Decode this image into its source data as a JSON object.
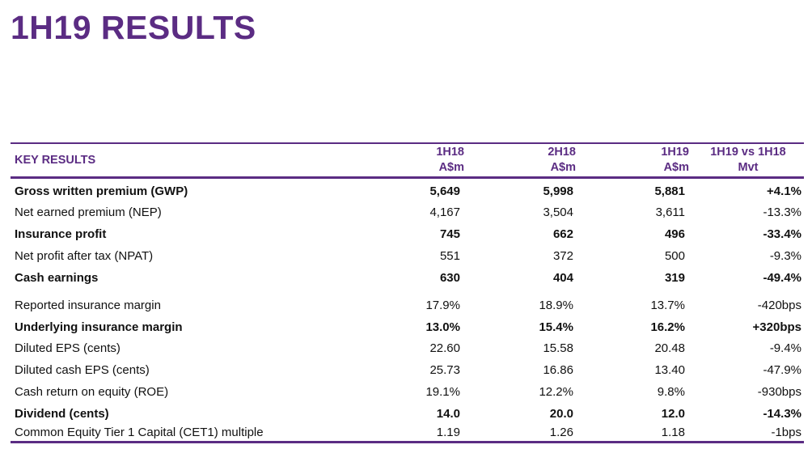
{
  "title": "1H19 RESULTS",
  "table": {
    "header": {
      "key_label": "KEY RESULTS",
      "col_1h18": [
        "1H18",
        "A$m"
      ],
      "col_2h18": [
        "2H18",
        "A$m"
      ],
      "col_1h19": [
        "1H19",
        "A$m"
      ],
      "col_mvt": [
        "1H19 vs 1H18",
        "Mvt"
      ]
    },
    "rows": [
      {
        "label": "Gross written premium (GWP)",
        "h1_18": "5,649",
        "h2_18": "5,998",
        "h1_19": "5,881",
        "mvt": "+4.1%",
        "bold": true
      },
      {
        "label": "Net earned premium (NEP)",
        "h1_18": "4,167",
        "h2_18": "3,504",
        "h1_19": "3,611",
        "mvt": "-13.3%",
        "bold": false
      },
      {
        "label": "Insurance profit",
        "h1_18": "745",
        "h2_18": "662",
        "h1_19": "496",
        "mvt": "-33.4%",
        "bold": true
      },
      {
        "label": "Net profit after tax (NPAT)",
        "h1_18": "551",
        "h2_18": "372",
        "h1_19": "500",
        "mvt": "-9.3%",
        "bold": false
      },
      {
        "label": "Cash earnings",
        "h1_18": "630",
        "h2_18": "404",
        "h1_19": "319",
        "mvt": "-49.4%",
        "bold": true
      },
      {
        "label": "Reported insurance margin",
        "h1_18": "17.9%",
        "h2_18": "18.9%",
        "h1_19": "13.7%",
        "mvt": "-420bps",
        "bold": false
      },
      {
        "label": "Underlying insurance margin",
        "h1_18": "13.0%",
        "h2_18": "15.4%",
        "h1_19": "16.2%",
        "mvt": "+320bps",
        "bold": true
      },
      {
        "label": "Diluted EPS (cents)",
        "h1_18": "22.60",
        "h2_18": "15.58",
        "h1_19": "20.48",
        "mvt": "-9.4%",
        "bold": false
      },
      {
        "label": "Diluted cash EPS (cents)",
        "h1_18": "25.73",
        "h2_18": "16.86",
        "h1_19": "13.40",
        "mvt": "-47.9%",
        "bold": false
      },
      {
        "label": "Cash return on equity (ROE)",
        "h1_18": "19.1%",
        "h2_18": "12.2%",
        "h1_19": "9.8%",
        "mvt": "-930bps",
        "bold": false
      },
      {
        "label": "Dividend (cents)",
        "h1_18": "14.0",
        "h2_18": "20.0",
        "h1_19": "12.0",
        "mvt": "-14.3%",
        "bold": true
      },
      {
        "label": "Common Equity Tier 1 Capital (CET1) multiple",
        "h1_18": "1.19",
        "h2_18": "1.26",
        "h1_19": "1.18",
        "mvt": "-1bps",
        "bold": false
      }
    ]
  },
  "colors": {
    "accent_purple": "#5b2c83",
    "column_shading": "#d0d0d0",
    "text": "#111111"
  }
}
